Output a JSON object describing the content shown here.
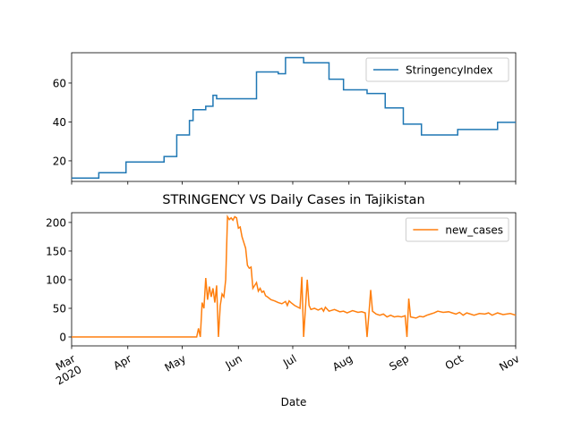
{
  "chart_data": [
    {
      "type": "line",
      "drawstyle": "steps-post",
      "x": [
        0,
        15,
        30,
        51,
        58,
        65,
        67,
        74,
        78,
        80,
        102,
        114,
        118,
        128,
        142,
        150,
        163,
        173,
        183,
        193,
        213,
        235,
        245
      ],
      "series": [
        {
          "name": "StringencyIndex",
          "color": "#1f77b4",
          "values": [
            11.1,
            13.9,
            19.4,
            22.2,
            33.3,
            40.7,
            46.3,
            48.1,
            53.7,
            51.9,
            65.7,
            64.8,
            73.1,
            70.4,
            62.0,
            56.5,
            54.6,
            47.2,
            38.9,
            33.3,
            36.1,
            39.8,
            39.8
          ]
        }
      ],
      "xlim": [
        0,
        245
      ],
      "xticks": [
        0,
        31,
        61,
        92,
        122,
        153,
        184,
        214,
        245
      ],
      "ylim": [
        9.4,
        75.6
      ],
      "yticks": [
        20,
        40,
        60
      ],
      "legend": "upper right"
    },
    {
      "type": "line",
      "title": "STRINGENCY VS Daily Cases in Tajikistan",
      "xlabel": "Date",
      "x": [
        0,
        69,
        70,
        71,
        72,
        73,
        74,
        75,
        76,
        77,
        78,
        79,
        80,
        81,
        82,
        83,
        84,
        85,
        86,
        87,
        88,
        89,
        90,
        91,
        92,
        93,
        94,
        95,
        96,
        97,
        98,
        99,
        100,
        101,
        102,
        103,
        104,
        105,
        106,
        107,
        108,
        110,
        112,
        114,
        116,
        118,
        119,
        120,
        121,
        123,
        126,
        127,
        128,
        129,
        130,
        131,
        132,
        134,
        136,
        138,
        139,
        140,
        142,
        145,
        148,
        150,
        152,
        155,
        158,
        160,
        162,
        163,
        164,
        165,
        166,
        168,
        170,
        172,
        174,
        176,
        178,
        180,
        182,
        184,
        185,
        186,
        187,
        190,
        192,
        194,
        196,
        198,
        200,
        202,
        205,
        208,
        210,
        212,
        214,
        216,
        218,
        220,
        222,
        225,
        228,
        230,
        232,
        235,
        238,
        240,
        242,
        245
      ],
      "series": [
        {
          "name": "new_cases",
          "color": "#ff7f0e",
          "values": [
            0,
            0,
            15,
            0,
            60,
            50,
            103,
            65,
            88,
            70,
            85,
            60,
            90,
            0,
            55,
            75,
            70,
            100,
            210,
            205,
            208,
            204,
            210,
            208,
            190,
            192,
            175,
            165,
            155,
            125,
            120,
            122,
            85,
            90,
            95,
            80,
            85,
            78,
            80,
            72,
            70,
            65,
            63,
            60,
            58,
            62,
            55,
            63,
            60,
            55,
            50,
            105,
            0,
            50,
            100,
            55,
            48,
            50,
            47,
            50,
            45,
            52,
            45,
            48,
            44,
            45,
            42,
            46,
            43,
            44,
            42,
            0,
            40,
            82,
            45,
            40,
            38,
            40,
            35,
            38,
            35,
            36,
            35,
            37,
            0,
            67,
            35,
            33,
            36,
            35,
            38,
            40,
            42,
            45,
            43,
            44,
            42,
            40,
            43,
            38,
            42,
            40,
            38,
            41,
            40,
            42,
            38,
            42,
            39,
            40,
            41,
            38
          ]
        }
      ],
      "xlim": [
        0,
        245
      ],
      "xticks": [
        {
          "value": 0,
          "label": "Mar\n2020"
        },
        {
          "value": 31,
          "label": "Apr"
        },
        {
          "value": 61,
          "label": "May"
        },
        {
          "value": 92,
          "label": "Jun"
        },
        {
          "value": 122,
          "label": "Jul"
        },
        {
          "value": 153,
          "label": "Aug"
        },
        {
          "value": 184,
          "label": "Sep"
        },
        {
          "value": 214,
          "label": "Oct"
        },
        {
          "value": 245,
          "label": "Nov"
        }
      ],
      "ylim": [
        -15.6,
        217
      ],
      "yticks": [
        0,
        50,
        100,
        150,
        200
      ],
      "legend": "upper right"
    }
  ]
}
